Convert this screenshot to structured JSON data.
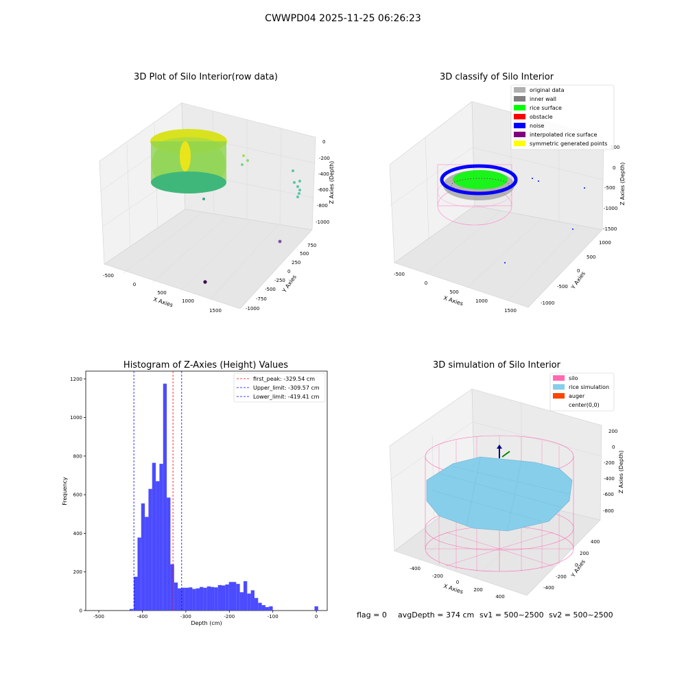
{
  "figure": {
    "title": "CWWPD04 2025-11-25 06:26:23",
    "footer": {
      "flag": "flag = 0",
      "avg_depth": "avgDepth = 374 cm",
      "sv1": "sv1 = 500~2500",
      "sv2": "sv2 = 500~2500"
    }
  },
  "panels": {
    "raw": {
      "title": "3D Plot of Silo Interior(row data)",
      "xlabel": "X Axies",
      "ylabel": "Y Axies",
      "zlabel": "Z Axies (Depth)",
      "xticks": [
        "-500",
        "0",
        "500",
        "1000",
        "1500"
      ],
      "yticks": [
        "-1000",
        "-750",
        "-500",
        "-250",
        "0",
        "250",
        "500",
        "750"
      ],
      "zticks": [
        "0",
        "-200",
        "-400",
        "-600",
        "-800",
        "-1000"
      ]
    },
    "classify": {
      "title": "3D classify of Silo Interior",
      "xlabel": "X Axies",
      "ylabel": "Y Axies",
      "zlabel": "Z Axies (Depth)",
      "xticks": [
        "-500",
        "0",
        "500",
        "1000",
        "1500"
      ],
      "yticks": [
        "-1000",
        "-500",
        "0",
        "500",
        "1000"
      ],
      "zticks": [
        "500",
        "0",
        "-500",
        "-1000",
        "-1500"
      ],
      "legend": [
        {
          "label": "original data",
          "color": "#b0b0b0"
        },
        {
          "label": "inner wall",
          "color": "#808080"
        },
        {
          "label": "rice surface",
          "color": "#00ff00"
        },
        {
          "label": "obstacle",
          "color": "#ff0000"
        },
        {
          "label": "noise",
          "color": "#0000ff"
        },
        {
          "label": "interpolated rice surface",
          "color": "#800080"
        },
        {
          "label": "symmetric generated points",
          "color": "#ffff00"
        }
      ]
    },
    "simulation": {
      "title": "3D simulation of Silo Interior",
      "xlabel": "X Axies",
      "ylabel": "Y Axies",
      "zlabel": "Z Axies (Depth)",
      "xticks": [
        "-400",
        "-200",
        "0",
        "200",
        "400"
      ],
      "yticks": [
        "-400",
        "-200",
        "0",
        "200",
        "400"
      ],
      "zticks": [
        "200",
        "0",
        "-200",
        "-400",
        "-600",
        "-800"
      ],
      "legend": [
        {
          "label": "silo",
          "color": "#ff69b4"
        },
        {
          "label": "rice simulation",
          "color": "#87ceeb"
        },
        {
          "label": "auger",
          "color": "#ff4500"
        },
        {
          "label": "center(0,0)",
          "color": ""
        }
      ]
    }
  },
  "chart_data": {
    "type": "bar",
    "title": "Histogram of Z-Axies (Height) Values",
    "xlabel": "Depth (cm)",
    "ylabel": "Frequency",
    "xlim": [
      -530,
      25
    ],
    "ylim": [
      0,
      1240
    ],
    "xticks": [
      -500,
      -400,
      -300,
      -200,
      -100,
      0
    ],
    "yticks": [
      0,
      200,
      400,
      600,
      800,
      1000,
      1200
    ],
    "bar_color": "#4b4bff",
    "bin_width": 8.4,
    "bin_start": -419.4,
    "values": [
      175,
      378,
      555,
      485,
      630,
      765,
      670,
      760,
      1175,
      585,
      240,
      145,
      115,
      118,
      118,
      120,
      112,
      115,
      122,
      118,
      125,
      122,
      120,
      132,
      130,
      135,
      148,
      148,
      138,
      95,
      152,
      88,
      105,
      65,
      40,
      28,
      18,
      22
    ],
    "extra_bars": [
      {
        "x": -425,
        "value": 8
      },
      {
        "x": 0,
        "value": 22
      }
    ],
    "vlines": [
      {
        "label": "first_peak: -329.54 cm",
        "x": -329.54,
        "color": "#ff0000"
      },
      {
        "label": "Upper_limit: -309.57 cm",
        "x": -309.57,
        "color": "#0000ff"
      },
      {
        "label": "Lower_limit: -419.41 cm",
        "x": -419.41,
        "color": "#0000ff"
      }
    ],
    "legend_position": "top-right"
  }
}
